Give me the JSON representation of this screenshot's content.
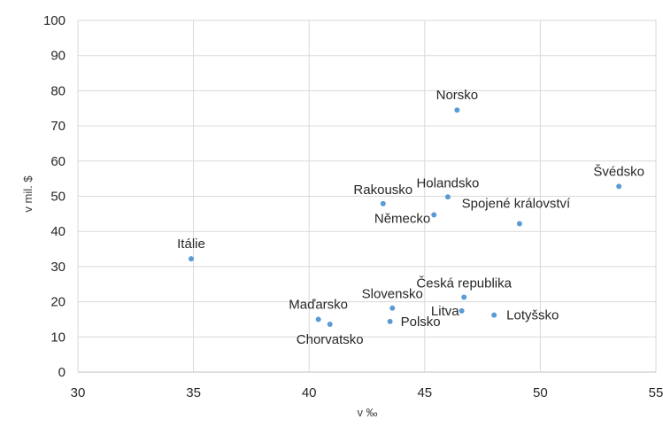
{
  "chart_data": {
    "type": "scatter",
    "title": "",
    "xlabel": "v ‰",
    "ylabel": "v mil. $",
    "xlim": [
      30,
      55
    ],
    "ylim": [
      0,
      100
    ],
    "x_ticks": [
      "30",
      "35",
      "40",
      "45",
      "50",
      "55"
    ],
    "y_ticks": [
      "0",
      "10",
      "20",
      "30",
      "40",
      "50",
      "60",
      "70",
      "80",
      "90",
      "100"
    ],
    "grid": true,
    "point_color": "#5b9bd5",
    "points": [
      {
        "label": "Norsko",
        "x": 46.4,
        "y": 74.5
      },
      {
        "label": "Švédsko",
        "x": 53.4,
        "y": 52.8
      },
      {
        "label": "Holandsko",
        "x": 46.0,
        "y": 49.8
      },
      {
        "label": "Rakousko",
        "x": 43.2,
        "y": 47.9
      },
      {
        "label": "Německo",
        "x": 45.4,
        "y": 44.7
      },
      {
        "label": "Spojené království",
        "x": 49.1,
        "y": 42.2
      },
      {
        "label": "Itálie",
        "x": 34.9,
        "y": 32.2
      },
      {
        "label": "Česká republika",
        "x": 46.7,
        "y": 21.3
      },
      {
        "label": "Slovensko",
        "x": 43.6,
        "y": 18.2
      },
      {
        "label": "Litva",
        "x": 46.6,
        "y": 17.4
      },
      {
        "label": "Lotyšsko",
        "x": 48.0,
        "y": 16.2
      },
      {
        "label": "Maďarsko",
        "x": 40.4,
        "y": 15.0
      },
      {
        "label": "Polsko",
        "x": 43.5,
        "y": 14.4
      },
      {
        "label": "Chorvatsko",
        "x": 40.9,
        "y": 13.6
      }
    ]
  }
}
